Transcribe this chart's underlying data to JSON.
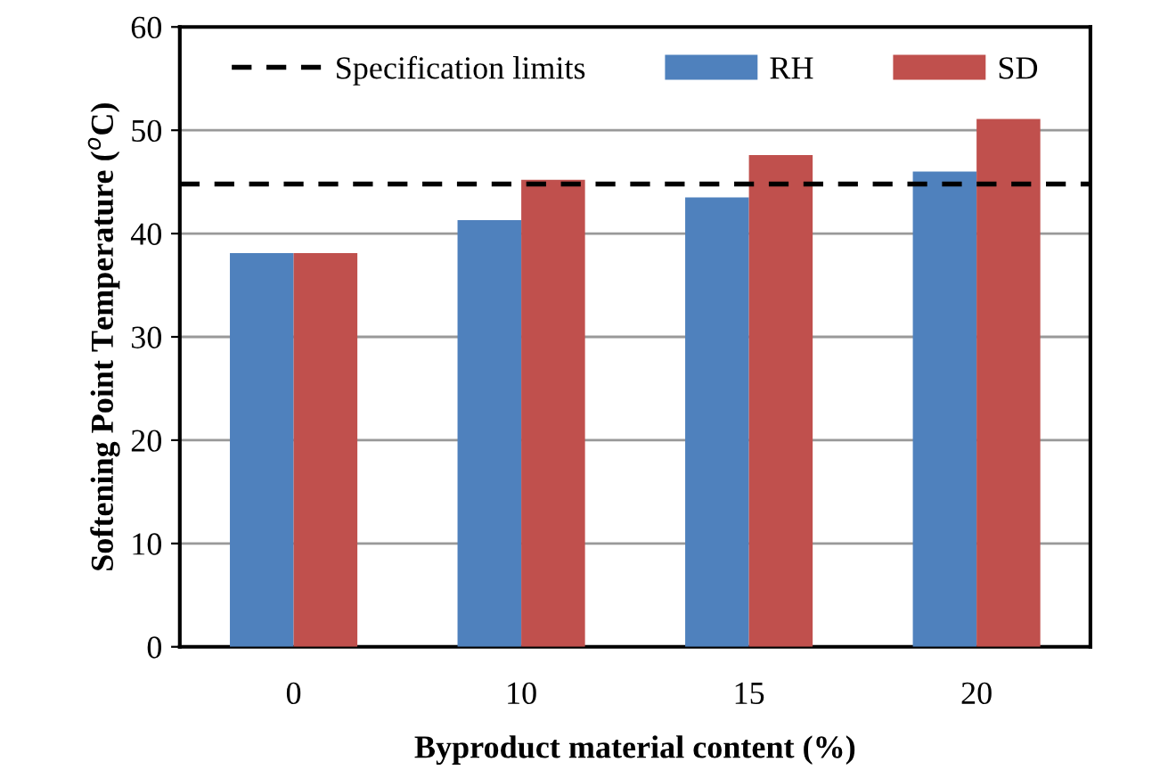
{
  "chart_data": {
    "type": "bar",
    "xlabel": "Byproduct material content (%)",
    "ylabel": "Softening Point Temperature ($^{o}$C)",
    "categories": [
      "0",
      "10",
      "15",
      "20"
    ],
    "series": [
      {
        "name": "RH",
        "color": "#4f81bd",
        "values": [
          38.1,
          41.3,
          43.5,
          46.0
        ]
      },
      {
        "name": "SD",
        "color": "#c0504d",
        "values": [
          38.1,
          45.2,
          47.6,
          51.1
        ]
      }
    ],
    "ref_lines": [
      {
        "axis": "y",
        "value": 44.8,
        "label": "Specification limits",
        "color": "#000000",
        "line_style": "dashed"
      }
    ],
    "ylim": [
      0,
      60
    ],
    "yticks": [
      0,
      10,
      20,
      30,
      40,
      50,
      60
    ],
    "grid": "y",
    "legend": "top"
  }
}
